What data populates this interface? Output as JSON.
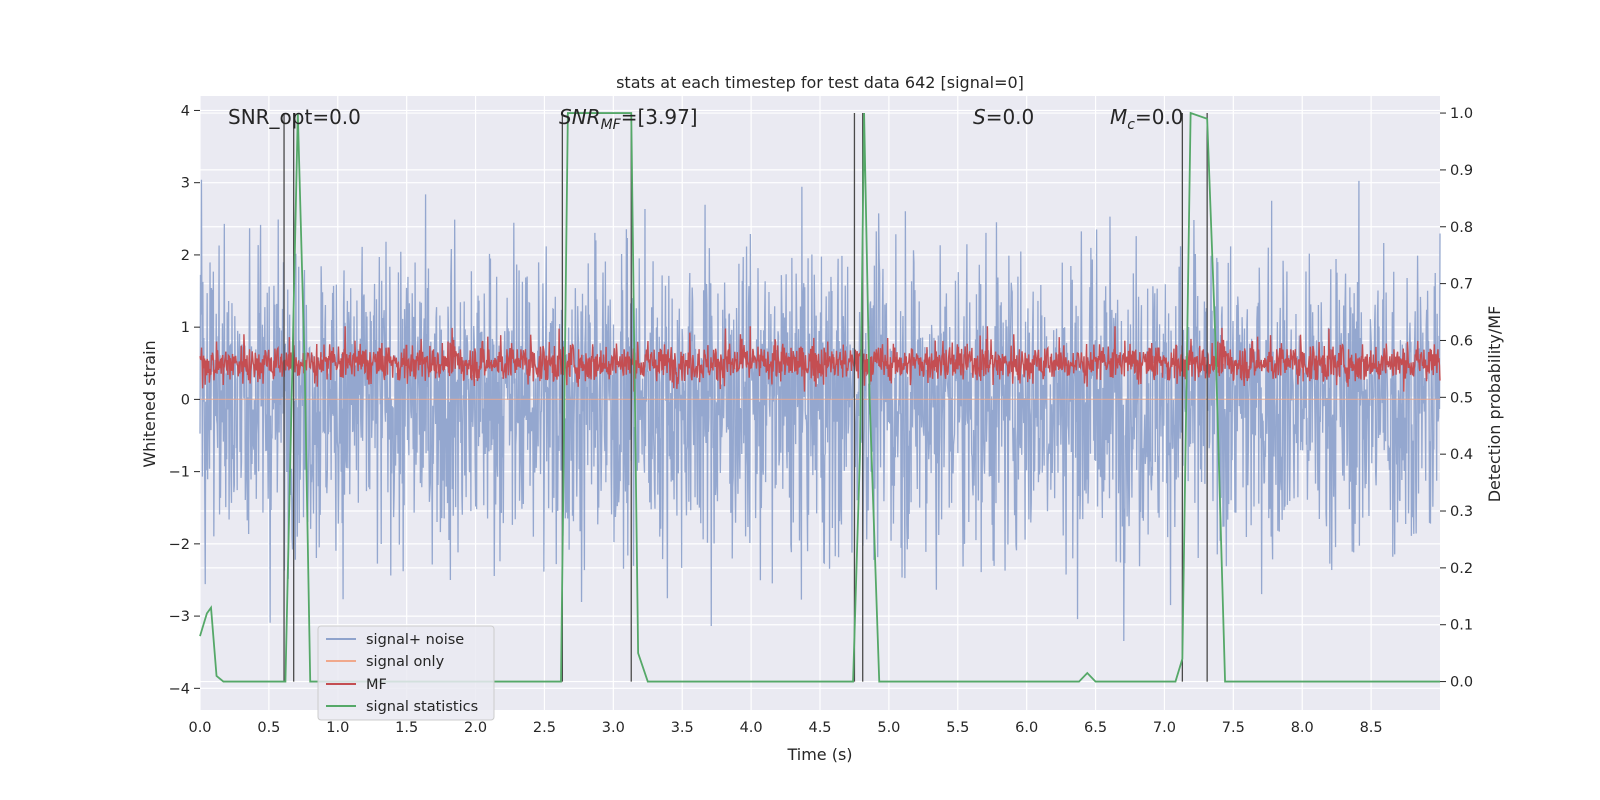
{
  "chart_data": {
    "type": "line",
    "title": "stats at each timestep for test data 642 [signal=0]",
    "xlabel": "Time (s)",
    "ylabel_left": "Whitened strain",
    "ylabel_right": "Detection probability/MF",
    "xlim": [
      0,
      9
    ],
    "ylim_left": [
      -4.3,
      4.2
    ],
    "ylim_right": [
      -0.05,
      1.03
    ],
    "x_ticks": [
      "0.0",
      "0.5",
      "1.0",
      "1.5",
      "2.0",
      "2.5",
      "3.0",
      "3.5",
      "4.0",
      "4.5",
      "5.0",
      "5.5",
      "6.0",
      "6.5",
      "7.0",
      "7.5",
      "8.0",
      "8.5"
    ],
    "y_ticks_left": [
      "4",
      "3",
      "2",
      "1",
      "0",
      "−1",
      "−2",
      "−3",
      "−4"
    ],
    "y_ticks_right": [
      "1.0",
      "0.9",
      "0.8",
      "0.7",
      "0.6",
      "0.5",
      "0.4",
      "0.3",
      "0.2",
      "0.1",
      "0.0"
    ],
    "grid": true,
    "legend_placement": "lower-left",
    "annotations": {
      "snr_opt": "SNR_opt=0.0",
      "snr_mf_prefix": "SNR",
      "snr_mf_sub": "MF",
      "snr_mf_value": "=[3.97]",
      "s_symbol": "S",
      "s_value": "=0.0",
      "mc_symbol": "M",
      "mc_sub": "c",
      "mc_value": "=0.0"
    },
    "series": [
      {
        "name": "signal+ noise",
        "color": "#8fa3cc",
        "axis": "left",
        "description_values": "white noise, mostly within ±2, peaks to about ±3.5"
      },
      {
        "name": "signal only",
        "color": "#f0a88c",
        "axis": "left",
        "values": "flat at 0"
      },
      {
        "name": "MF",
        "color": "#c44e52",
        "axis": "right",
        "description_values": "noisy band roughly 0.52 to 0.60"
      },
      {
        "name": "signal statistics",
        "color": "#55a868",
        "axis": "right",
        "x": [
          0.0,
          0.05,
          0.08,
          0.12,
          0.17,
          0.62,
          0.67,
          0.71,
          0.76,
          0.8,
          2.62,
          2.67,
          3.13,
          3.18,
          3.25,
          4.74,
          4.79,
          4.82,
          4.86,
          4.93,
          6.38,
          6.44,
          6.5,
          7.08,
          7.13,
          7.19,
          7.31,
          7.37,
          7.44,
          9.0
        ],
        "values": [
          0.08,
          0.12,
          0.13,
          0.01,
          0.0,
          0.0,
          0.55,
          1.0,
          0.55,
          0.0,
          0.0,
          1.0,
          1.0,
          0.05,
          0.0,
          0.0,
          0.4,
          1.0,
          0.5,
          0.0,
          0.0,
          0.015,
          0.0,
          0.0,
          0.04,
          1.0,
          0.99,
          0.6,
          0.0,
          0.0
        ]
      }
    ],
    "vertical_markers_x": [
      0.61,
      0.68,
      2.63,
      3.13,
      4.75,
      4.81,
      7.13,
      7.31
    ]
  }
}
